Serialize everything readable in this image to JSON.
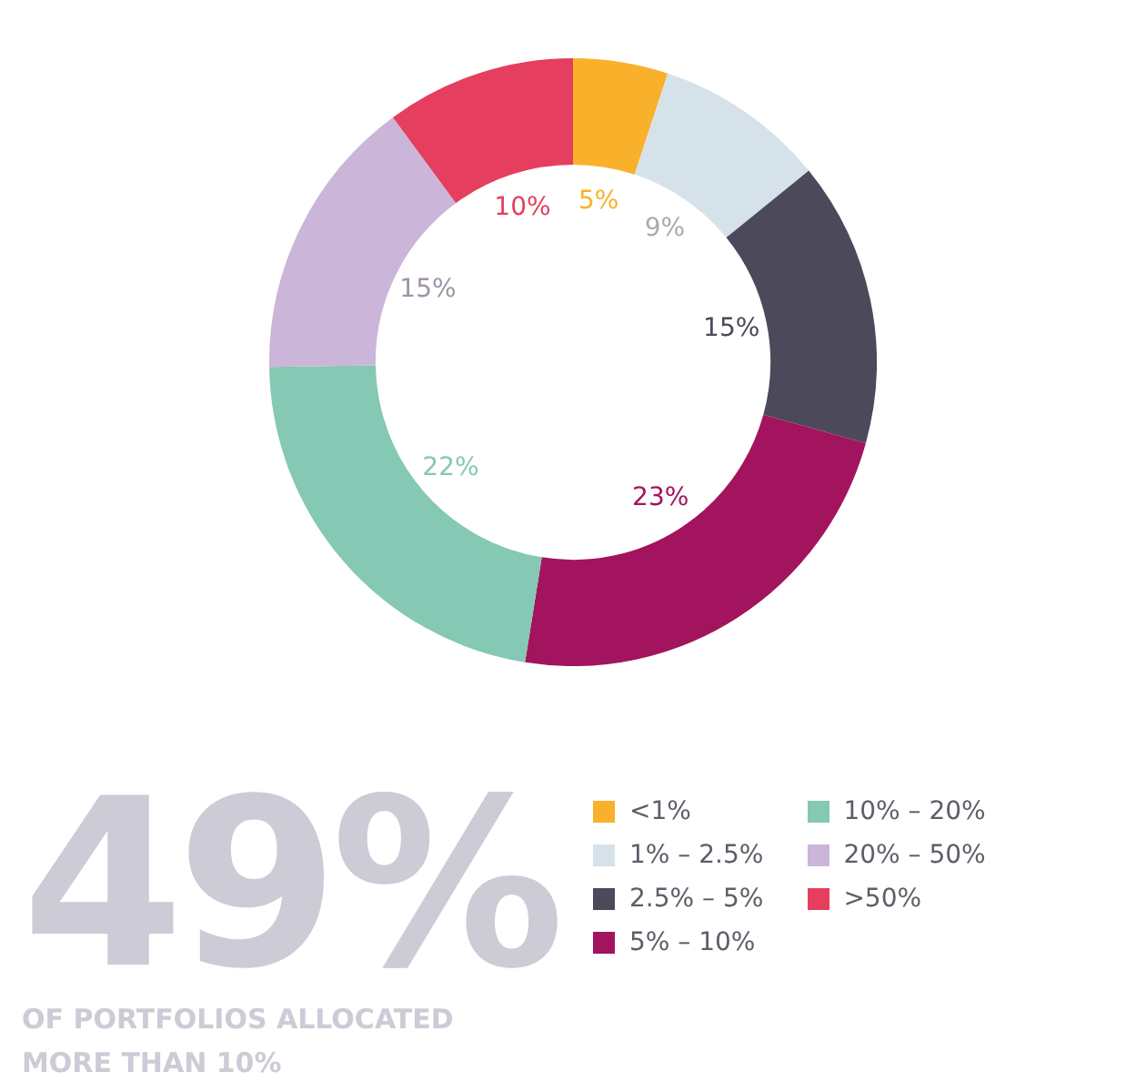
{
  "chart_data": {
    "type": "donut",
    "categories": [
      "<1%",
      "1% – 2.5%",
      "2.5% – 5%",
      "5% – 10%",
      "10% – 20%",
      "20% – 50%",
      ">50%"
    ],
    "values": [
      5,
      9,
      15,
      23,
      22,
      15,
      10
    ],
    "value_labels": [
      "5%",
      "9%",
      "15%",
      "23%",
      "22%",
      "15%",
      "10%"
    ],
    "colors": [
      "#f9b12b",
      "#d6e2ea",
      "#4c4a5a",
      "#a2145e",
      "#85c8b3",
      "#cbb5d9",
      "#e53e5e"
    ],
    "legend": "bottom right",
    "annotations": [
      "49%",
      "OF PORTFOLIOS ALLOCATED MORE THAN 10%"
    ]
  }
}
